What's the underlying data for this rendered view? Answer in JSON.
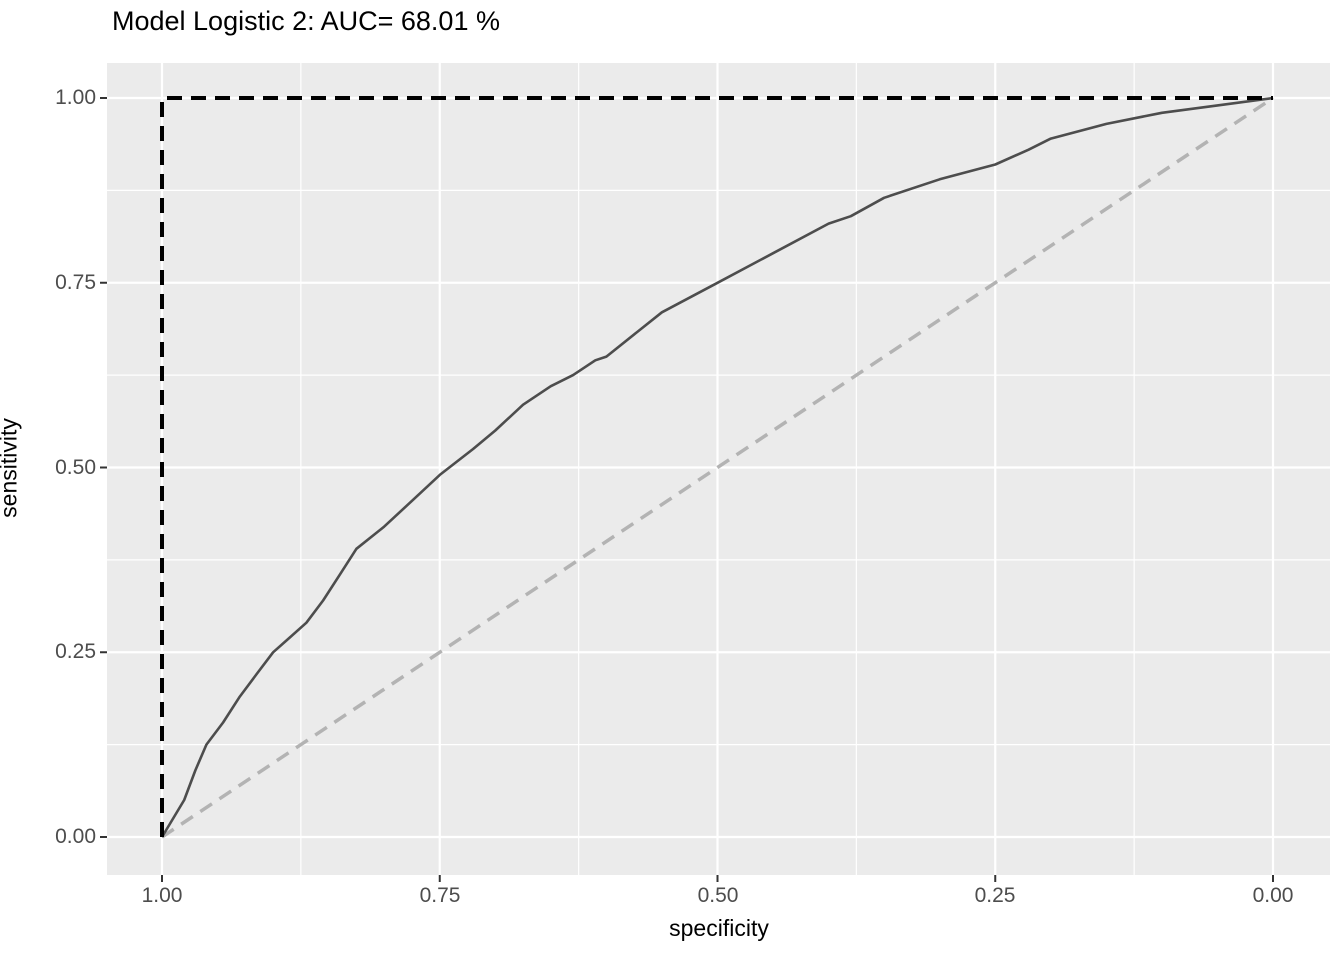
{
  "title": "Model Logistic 2: AUC= 68.01 %",
  "chart_data": {
    "type": "line",
    "title": "Model Logistic 2: AUC= 68.01 %",
    "xlabel": "specificity",
    "ylabel": "sensitivity",
    "x_axis_reversed": true,
    "xlim": [
      1.0,
      0.0
    ],
    "ylim": [
      0.0,
      1.0
    ],
    "x_ticks": [
      "1.00",
      "0.75",
      "0.50",
      "0.25",
      "0.00"
    ],
    "y_ticks": [
      "1.00",
      "0.75",
      "0.50",
      "0.25",
      "0.00"
    ],
    "x_tick_values": [
      1.0,
      0.75,
      0.5,
      0.25,
      0.0
    ],
    "y_tick_values": [
      1.0,
      0.75,
      0.5,
      0.25,
      0.0
    ],
    "minor_tick_values": [
      0.875,
      0.625,
      0.375,
      0.125
    ],
    "grid": "major and minor white gridlines on grey panel",
    "legend": "none",
    "auc_percent": 68.01,
    "series": [
      {
        "name": "roc-curve",
        "style": "solid",
        "color": "#4d4d4d",
        "points": [
          [
            1.0,
            0.0
          ],
          [
            0.99,
            0.025
          ],
          [
            0.98,
            0.05
          ],
          [
            0.97,
            0.09
          ],
          [
            0.96,
            0.125
          ],
          [
            0.945,
            0.155
          ],
          [
            0.93,
            0.19
          ],
          [
            0.915,
            0.22
          ],
          [
            0.9,
            0.25
          ],
          [
            0.885,
            0.27
          ],
          [
            0.87,
            0.29
          ],
          [
            0.855,
            0.32
          ],
          [
            0.84,
            0.355
          ],
          [
            0.825,
            0.39
          ],
          [
            0.8,
            0.42
          ],
          [
            0.775,
            0.455
          ],
          [
            0.75,
            0.49
          ],
          [
            0.72,
            0.525
          ],
          [
            0.7,
            0.55
          ],
          [
            0.675,
            0.585
          ],
          [
            0.65,
            0.61
          ],
          [
            0.63,
            0.625
          ],
          [
            0.61,
            0.645
          ],
          [
            0.6,
            0.65
          ],
          [
            0.55,
            0.71
          ],
          [
            0.5,
            0.75
          ],
          [
            0.45,
            0.79
          ],
          [
            0.4,
            0.83
          ],
          [
            0.38,
            0.84
          ],
          [
            0.35,
            0.865
          ],
          [
            0.3,
            0.89
          ],
          [
            0.25,
            0.91
          ],
          [
            0.22,
            0.93
          ],
          [
            0.2,
            0.945
          ],
          [
            0.15,
            0.965
          ],
          [
            0.1,
            0.98
          ],
          [
            0.05,
            0.99
          ],
          [
            0.0,
            1.0
          ]
        ]
      },
      {
        "name": "ideal-line",
        "style": "dashed",
        "color": "#000000",
        "points": [
          [
            1.0,
            0.0
          ],
          [
            1.0,
            1.0
          ],
          [
            0.0,
            1.0
          ]
        ]
      },
      {
        "name": "chance-diagonal",
        "style": "dashed",
        "color": "#b3b3b3",
        "points": [
          [
            1.0,
            0.0
          ],
          [
            0.0,
            1.0
          ]
        ]
      }
    ],
    "colors": {
      "panel_background": "#ebebeb",
      "gridline": "#ffffff",
      "tick_mark": "#333333",
      "tick_label": "#4d4d4d",
      "axis_title": "#000000",
      "title": "#000000"
    }
  }
}
